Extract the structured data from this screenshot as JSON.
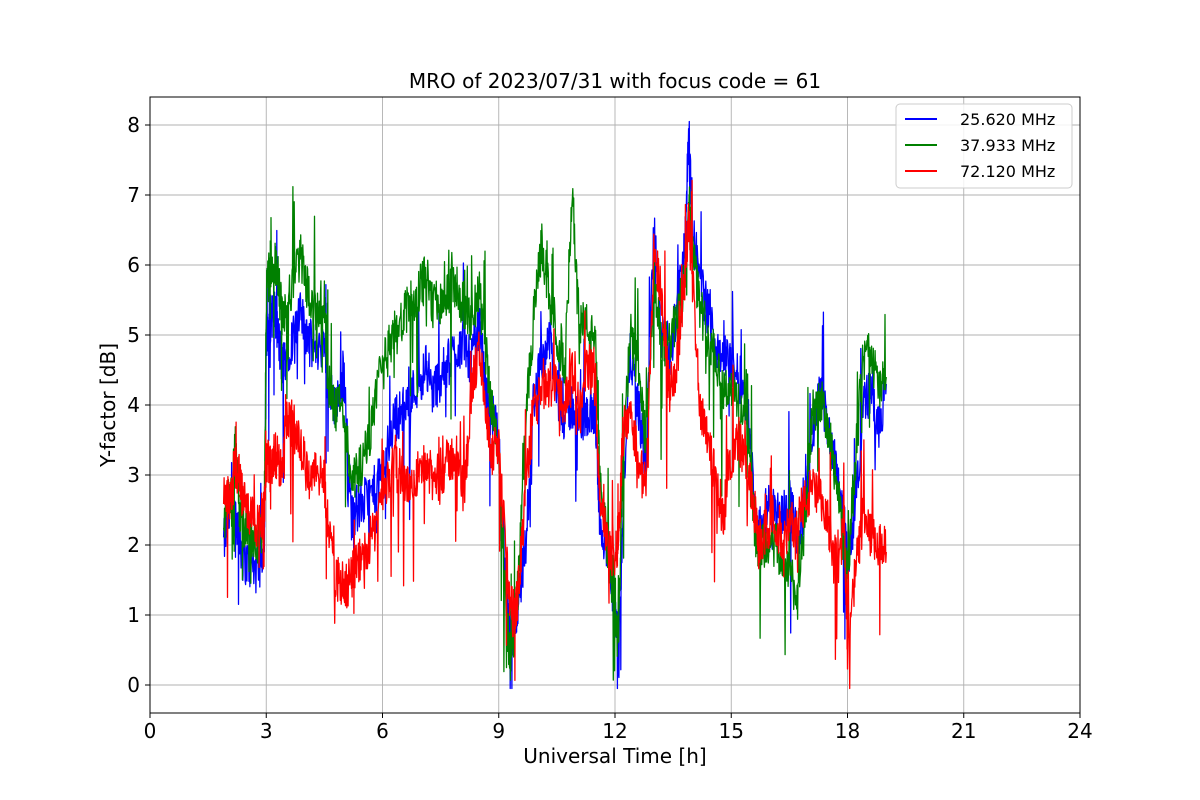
{
  "chart_data": {
    "type": "line",
    "title": "MRO of 2023/07/31 with focus code = 61",
    "xlabel": "Universal Time [h]",
    "ylabel": "Y-factor [dB]",
    "xlim": [
      0,
      24
    ],
    "ylim": [
      -0.4,
      8.4
    ],
    "xticks": [
      0,
      3,
      6,
      9,
      12,
      15,
      18,
      21,
      24
    ],
    "yticks": [
      0,
      1,
      2,
      3,
      4,
      5,
      6,
      7,
      8
    ],
    "grid": true,
    "legend_position": "top-right",
    "series": [
      {
        "name": "25.620 MHz",
        "color": "#0000ff",
        "x": [
          1.9,
          2.1,
          2.2,
          2.3,
          2.4,
          2.6,
          2.8,
          2.95,
          3.0,
          3.1,
          3.2,
          3.3,
          3.4,
          3.5,
          3.7,
          3.9,
          4.1,
          4.3,
          4.5,
          4.6,
          4.8,
          5.0,
          5.2,
          5.3,
          5.5,
          5.7,
          5.9,
          6.1,
          6.3,
          6.5,
          6.7,
          6.9,
          7.1,
          7.3,
          7.5,
          7.7,
          7.9,
          8.1,
          8.3,
          8.5,
          8.7,
          8.8,
          9.0,
          9.2,
          9.3,
          9.4,
          9.5,
          9.7,
          9.9,
          10.1,
          10.3,
          10.5,
          10.7,
          10.9,
          11.1,
          11.3,
          11.5,
          11.6,
          11.8,
          12.0,
          12.1,
          12.2,
          12.4,
          12.6,
          12.8,
          13.0,
          13.2,
          13.4,
          13.6,
          13.8,
          13.9,
          14.0,
          14.2,
          14.4,
          14.6,
          14.8,
          15.0,
          15.2,
          15.4,
          15.6,
          15.7,
          15.9,
          16.1,
          16.3,
          16.5,
          16.7,
          16.9,
          17.1,
          17.3,
          17.5,
          17.7,
          17.9,
          18.0,
          18.2,
          18.4,
          18.6,
          18.8,
          19.0
        ],
        "values": [
          2.0,
          2.6,
          2.4,
          2.2,
          1.8,
          1.7,
          1.6,
          2.1,
          4.8,
          5.2,
          5.4,
          5.0,
          4.6,
          4.7,
          5.0,
          5.3,
          4.9,
          4.8,
          5.0,
          4.2,
          4.0,
          4.4,
          2.4,
          2.5,
          2.6,
          2.7,
          2.9,
          3.3,
          3.8,
          3.9,
          4.1,
          4.3,
          4.5,
          4.2,
          4.4,
          4.6,
          4.8,
          4.9,
          4.6,
          5.2,
          4.0,
          3.9,
          3.5,
          1.3,
          0.6,
          0.9,
          1.2,
          2.0,
          4.1,
          4.6,
          5.0,
          4.2,
          3.8,
          4.0,
          3.7,
          3.9,
          3.8,
          2.4,
          1.8,
          1.0,
          0.4,
          2.5,
          4.8,
          4.0,
          3.1,
          6.5,
          5.0,
          4.6,
          5.4,
          6.3,
          7.8,
          6.5,
          5.8,
          5.3,
          4.9,
          4.7,
          4.6,
          4.4,
          4.1,
          2.6,
          2.2,
          2.5,
          2.6,
          2.4,
          2.7,
          2.1,
          2.5,
          3.6,
          4.2,
          3.7,
          3.2,
          2.4,
          1.8,
          2.5,
          4.0,
          4.2,
          3.6,
          4.3
        ]
      },
      {
        "name": "37.933 MHz",
        "color": "#008000",
        "x": [
          1.9,
          2.1,
          2.2,
          2.3,
          2.4,
          2.6,
          2.8,
          2.95,
          3.0,
          3.1,
          3.2,
          3.3,
          3.4,
          3.5,
          3.7,
          3.9,
          4.1,
          4.3,
          4.5,
          4.6,
          4.8,
          5.0,
          5.2,
          5.3,
          5.5,
          5.7,
          5.9,
          6.1,
          6.3,
          6.5,
          6.7,
          6.9,
          7.1,
          7.3,
          7.5,
          7.7,
          7.9,
          8.1,
          8.3,
          8.5,
          8.7,
          8.8,
          9.0,
          9.2,
          9.3,
          9.4,
          9.5,
          9.7,
          9.9,
          10.1,
          10.3,
          10.5,
          10.7,
          10.9,
          11.1,
          11.3,
          11.5,
          11.6,
          11.8,
          12.0,
          12.1,
          12.2,
          12.4,
          12.6,
          12.8,
          13.0,
          13.2,
          13.4,
          13.6,
          13.8,
          13.9,
          14.0,
          14.2,
          14.4,
          14.6,
          14.8,
          15.0,
          15.2,
          15.4,
          15.6,
          15.7,
          15.9,
          16.1,
          16.3,
          16.5,
          16.7,
          16.9,
          17.1,
          17.3,
          17.5,
          17.7,
          17.9,
          18.0,
          18.2,
          18.4,
          18.6,
          18.8,
          19.0
        ],
        "values": [
          2.3,
          2.8,
          3.4,
          2.6,
          2.3,
          2.1,
          2.0,
          2.4,
          5.6,
          6.0,
          6.1,
          5.8,
          5.3,
          5.4,
          5.8,
          6.1,
          5.5,
          5.4,
          5.5,
          4.3,
          3.9,
          4.0,
          2.8,
          3.0,
          3.2,
          3.6,
          4.3,
          4.7,
          5.0,
          5.2,
          5.4,
          5.6,
          5.8,
          5.4,
          5.5,
          5.6,
          5.7,
          5.4,
          5.2,
          5.6,
          4.6,
          4.1,
          3.4,
          0.9,
          0.4,
          0.8,
          1.4,
          3.8,
          5.2,
          6.3,
          5.6,
          5.0,
          4.6,
          6.9,
          5.2,
          5.1,
          4.8,
          3.0,
          2.0,
          1.4,
          0.8,
          3.2,
          5.0,
          4.5,
          3.4,
          5.8,
          4.8,
          4.9,
          5.2,
          5.8,
          7.0,
          6.2,
          5.4,
          5.0,
          4.7,
          4.2,
          4.3,
          4.0,
          3.8,
          2.3,
          1.9,
          2.0,
          2.0,
          1.8,
          1.7,
          1.2,
          2.3,
          3.9,
          4.1,
          3.6,
          3.0,
          2.0,
          1.6,
          3.2,
          4.6,
          4.8,
          4.2,
          4.4
        ]
      },
      {
        "name": "72.120 MHz",
        "color": "#ff0000",
        "x": [
          1.9,
          2.1,
          2.2,
          2.3,
          2.4,
          2.6,
          2.8,
          2.95,
          3.0,
          3.1,
          3.2,
          3.3,
          3.4,
          3.5,
          3.7,
          3.9,
          4.1,
          4.3,
          4.5,
          4.6,
          4.8,
          5.0,
          5.2,
          5.3,
          5.5,
          5.7,
          5.9,
          6.1,
          6.3,
          6.5,
          6.7,
          6.9,
          7.1,
          7.3,
          7.5,
          7.7,
          7.9,
          8.1,
          8.3,
          8.5,
          8.7,
          8.8,
          9.0,
          9.2,
          9.3,
          9.4,
          9.5,
          9.7,
          9.9,
          10.1,
          10.3,
          10.5,
          10.7,
          10.9,
          11.1,
          11.3,
          11.5,
          11.6,
          11.8,
          12.0,
          12.1,
          12.2,
          12.4,
          12.6,
          12.8,
          13.0,
          13.2,
          13.4,
          13.6,
          13.8,
          13.9,
          14.0,
          14.2,
          14.4,
          14.6,
          14.8,
          15.0,
          15.2,
          15.4,
          15.6,
          15.7,
          15.9,
          16.1,
          16.3,
          16.5,
          16.7,
          16.9,
          17.1,
          17.3,
          17.5,
          17.7,
          17.9,
          18.0,
          18.2,
          18.4,
          18.6,
          18.8,
          19.0
        ],
        "values": [
          2.8,
          2.7,
          3.1,
          3.0,
          2.6,
          2.4,
          2.3,
          2.5,
          3.2,
          3.1,
          3.3,
          3.2,
          3.0,
          3.8,
          3.7,
          3.3,
          3.0,
          3.0,
          2.9,
          2.2,
          1.5,
          1.4,
          1.5,
          1.7,
          1.9,
          2.1,
          2.4,
          2.8,
          3.2,
          3.0,
          2.8,
          3.0,
          3.2,
          2.9,
          3.0,
          3.2,
          3.3,
          2.7,
          4.2,
          4.8,
          3.8,
          3.2,
          3.3,
          1.8,
          1.1,
          1.0,
          1.3,
          2.8,
          4.0,
          4.1,
          4.3,
          4.3,
          4.0,
          4.4,
          3.9,
          4.6,
          4.3,
          2.8,
          2.0,
          1.8,
          2.2,
          3.6,
          4.0,
          3.2,
          2.8,
          6.2,
          5.6,
          4.2,
          4.6,
          5.8,
          6.6,
          5.8,
          4.0,
          3.6,
          2.9,
          2.4,
          3.3,
          3.5,
          3.1,
          2.5,
          2.0,
          2.2,
          2.4,
          2.1,
          2.2,
          2.4,
          2.6,
          2.8,
          2.6,
          2.3,
          1.8,
          2.6,
          0.4,
          1.6,
          2.4,
          2.1,
          2.0,
          1.9
        ]
      }
    ]
  }
}
